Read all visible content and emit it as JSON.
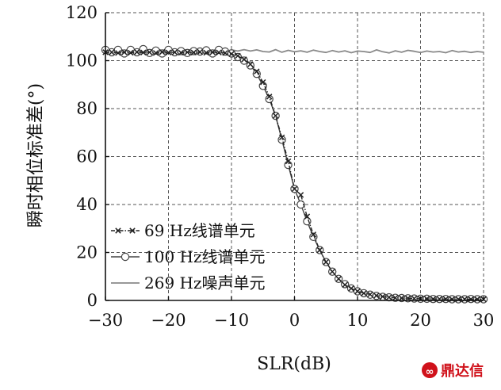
{
  "chart_data": {
    "type": "line",
    "title": "",
    "xlabel": "SLR(dB)",
    "ylabel": "瞬时相位标准差(°)",
    "xlim": [
      -30,
      30
    ],
    "ylim": [
      0,
      120
    ],
    "xticks": [
      -30,
      -20,
      -10,
      0,
      10,
      20,
      30
    ],
    "yticks": [
      0,
      20,
      40,
      60,
      80,
      100,
      120
    ],
    "xtick_labels": [
      "−30",
      "−20",
      "−10",
      "0",
      "10",
      "20",
      "30"
    ],
    "ytick_labels": [
      "0",
      "20",
      "40",
      "60",
      "80",
      "100",
      "120"
    ],
    "grid": true,
    "grid_style": "dashed",
    "legend_position": "lower-left",
    "x": [
      -30,
      -29,
      -28,
      -27,
      -26,
      -25,
      -24,
      -23,
      -22,
      -21,
      -20,
      -19,
      -18,
      -17,
      -16,
      -15,
      -14,
      -13,
      -12,
      -11,
      -10,
      -9,
      -8,
      -7,
      -6,
      -5,
      -4,
      -3,
      -2,
      -1,
      0,
      1,
      2,
      3,
      4,
      5,
      6,
      7,
      8,
      9,
      10,
      11,
      12,
      13,
      14,
      15,
      16,
      17,
      18,
      19,
      20,
      21,
      22,
      23,
      24,
      25,
      26,
      27,
      28,
      29,
      30
    ],
    "series": [
      {
        "name": "69 Hz线谱单元",
        "marker": "x",
        "line": "dash-dot",
        "color": "#222222",
        "values": [
          103.5,
          103.5,
          103.2,
          103.5,
          103.3,
          103.6,
          103.4,
          103.5,
          103.2,
          103.6,
          103.4,
          103.5,
          103.3,
          103.5,
          103.4,
          103.6,
          103.3,
          103.5,
          103.4,
          103.2,
          102.8,
          102.0,
          100.5,
          98.5,
          95.5,
          91.0,
          85.0,
          77.0,
          68.0,
          58.0,
          46.5,
          44.0,
          35.0,
          27.5,
          21.0,
          16.0,
          12.0,
          9.0,
          6.5,
          5.0,
          3.8,
          3.0,
          2.5,
          2.0,
          1.6,
          1.3,
          1.1,
          1.0,
          0.9,
          0.8,
          0.7,
          0.7,
          0.6,
          0.6,
          0.6,
          0.5,
          0.5,
          0.5,
          0.5,
          0.5,
          0.5
        ]
      },
      {
        "name": "100 Hz线谱单元",
        "marker": "circle",
        "line": "solid",
        "color": "#444444",
        "values": [
          104.5,
          103.5,
          104.5,
          103.0,
          104.5,
          103.5,
          104.8,
          103.2,
          104.2,
          103.0,
          104.5,
          103.5,
          104.0,
          103.2,
          104.0,
          103.8,
          104.3,
          103.0,
          104.5,
          103.8,
          103.0,
          101.5,
          100.0,
          98.0,
          94.5,
          89.5,
          84.0,
          77.0,
          67.0,
          56.5,
          46.5,
          40.0,
          33.0,
          26.5,
          21.0,
          16.0,
          12.0,
          9.0,
          6.8,
          5.0,
          3.8,
          3.0,
          2.4,
          1.9,
          1.5,
          1.3,
          1.1,
          1.0,
          0.9,
          0.8,
          0.7,
          0.7,
          0.6,
          0.6,
          0.6,
          0.5,
          0.5,
          0.5,
          0.6,
          0.5,
          0.5
        ]
      },
      {
        "name": "269 Hz噪声单元",
        "marker": "none",
        "line": "solid",
        "color": "#8a8a8a",
        "values": [
          103.0,
          103.6,
          103.3,
          103.8,
          103.5,
          103.2,
          103.6,
          103.4,
          103.8,
          103.3,
          103.6,
          103.5,
          103.9,
          103.4,
          103.6,
          103.3,
          103.7,
          103.5,
          103.8,
          103.6,
          104.5,
          104.0,
          104.6,
          104.0,
          104.5,
          103.8,
          103.6,
          104.6,
          103.5,
          104.3,
          103.7,
          104.1,
          103.5,
          104.4,
          103.8,
          103.4,
          104.2,
          103.6,
          104.1,
          103.3,
          104.0,
          103.8,
          103.4,
          104.5,
          103.7,
          103.2,
          104.1,
          103.5,
          104.3,
          103.9,
          103.4,
          104.0,
          103.6,
          103.8,
          103.3,
          104.2,
          103.6,
          103.9,
          103.4,
          103.8,
          103.5
        ]
      }
    ]
  },
  "watermark": {
    "text": "鼎达信",
    "icon": "watermark-logo-icon"
  },
  "colors": {
    "background": "#ffffff",
    "axis": "#111111",
    "grid": "#555555",
    "watermark": "#d0121b"
  }
}
